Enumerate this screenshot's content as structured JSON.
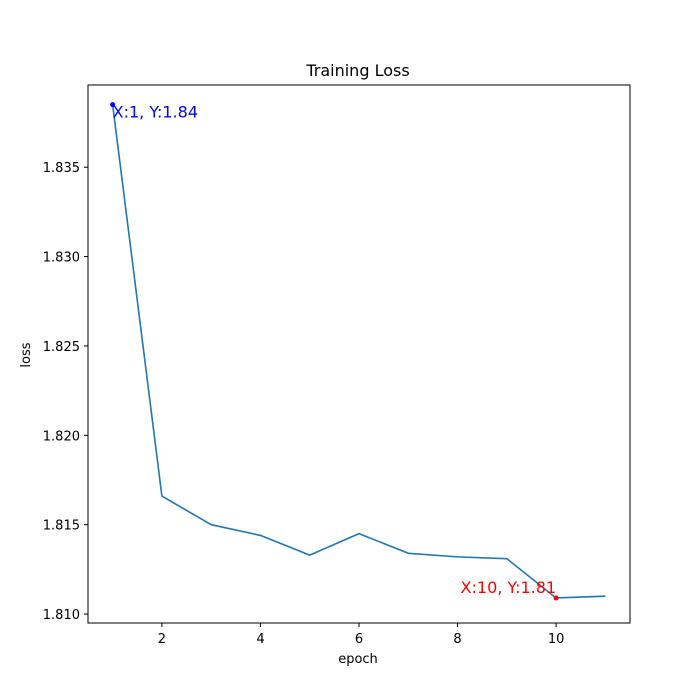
{
  "chart_data": {
    "type": "line",
    "title": "Training Loss",
    "xlabel": "epoch",
    "ylabel": "loss",
    "xlim": [
      0.5,
      11.5
    ],
    "ylim": [
      1.8095,
      1.8396
    ],
    "xticks": [
      2,
      4,
      6,
      8,
      10
    ],
    "yticks": [
      1.81,
      1.815,
      1.82,
      1.825,
      1.83,
      1.835
    ],
    "ytick_labels": [
      "1.810",
      "1.815",
      "1.820",
      "1.825",
      "1.830",
      "1.835"
    ],
    "grid": false,
    "series": [
      {
        "color": "#1f77b4",
        "x": [
          1,
          2,
          3,
          4,
          5,
          6,
          7,
          8,
          9,
          10,
          11
        ],
        "y": [
          1.8385,
          1.8166,
          1.815,
          1.8144,
          1.8133,
          1.8145,
          1.8134,
          1.8132,
          1.8131,
          1.8109,
          1.811
        ]
      }
    ],
    "annotations": [
      {
        "text": "X:1, Y:1.84",
        "x": 1,
        "y": 1.8385,
        "color": "#0000ff"
      },
      {
        "text": "X:10, Y:1.81",
        "x": 10,
        "y": 1.8109,
        "color": "#ff0000"
      }
    ]
  }
}
